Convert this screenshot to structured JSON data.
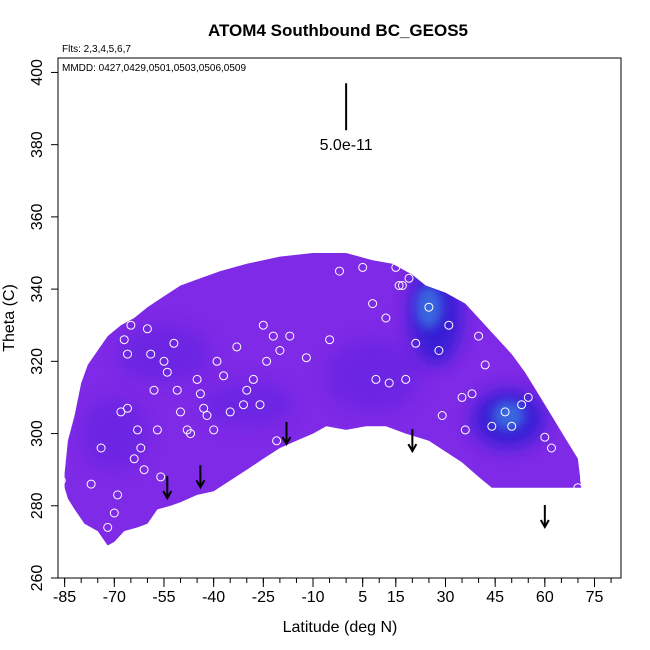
{
  "chart_data": {
    "type": "heatmap",
    "title": "ATOM4 Southbound BC_GEOS5",
    "annotations": {
      "flights": "Flts: 2,3,4,5,6,7",
      "dates": "MMDD: 0427,0429,0501,0503,0506,0509",
      "scale_label": "5.0e-11"
    },
    "xlabel": "Latitude (deg N)",
    "ylabel": "Theta (C)",
    "xlim": [
      -87,
      83
    ],
    "ylim": [
      260,
      404
    ],
    "x_tick_labels": [
      "-85",
      "-70",
      "-55",
      "-40",
      "-25",
      "-10",
      "5",
      "15",
      "30",
      "45",
      "60",
      "75"
    ],
    "x_tick_values": [
      -85,
      -70,
      -55,
      -40,
      -25,
      -10,
      5,
      15,
      30,
      45,
      60,
      75
    ],
    "x_minor_ticks": [
      -85,
      -80,
      -75,
      -70,
      -65,
      -60,
      -55,
      -50,
      -45,
      -40,
      -35,
      -30,
      -25,
      -20,
      -15,
      -10,
      -5,
      0,
      5,
      10,
      15,
      20,
      25,
      30,
      35,
      40,
      45,
      50,
      55,
      60,
      65,
      70,
      75,
      80
    ],
    "y_tick_labels": [
      "260",
      "280",
      "300",
      "320",
      "340",
      "360",
      "380",
      "400"
    ],
    "y_tick_values": [
      260,
      280,
      300,
      320,
      340,
      360,
      380,
      400
    ],
    "colors": {
      "field_base": "#7f2ae6",
      "field_mid": "#5d22e0",
      "field_high": "#2f1bd3",
      "field_peak": "#3a6ee0",
      "points": "#ffffff",
      "arrows": "#000000"
    },
    "upper_boundary": [
      [
        -85,
        289
      ],
      [
        -84,
        298
      ],
      [
        -82,
        305
      ],
      [
        -80,
        314
      ],
      [
        -78,
        319
      ],
      [
        -75,
        323
      ],
      [
        -72,
        327
      ],
      [
        -68,
        330
      ],
      [
        -64,
        332
      ],
      [
        -60,
        335
      ],
      [
        -55,
        338
      ],
      [
        -50,
        341
      ],
      [
        -44,
        343
      ],
      [
        -38,
        345
      ],
      [
        -30,
        347
      ],
      [
        -20,
        349
      ],
      [
        -10,
        350
      ],
      [
        0,
        350
      ],
      [
        8,
        348
      ],
      [
        14,
        347
      ],
      [
        20,
        344
      ],
      [
        24,
        341
      ],
      [
        30,
        339
      ],
      [
        36,
        336
      ],
      [
        40,
        332
      ],
      [
        45,
        327
      ],
      [
        50,
        322
      ],
      [
        54,
        317
      ],
      [
        58,
        311
      ],
      [
        62,
        305
      ],
      [
        66,
        299
      ],
      [
        70,
        293
      ],
      [
        71,
        285
      ]
    ],
    "lower_boundary": [
      [
        71,
        285
      ],
      [
        60,
        285
      ],
      [
        50,
        285
      ],
      [
        44,
        285
      ],
      [
        40,
        288
      ],
      [
        35,
        292
      ],
      [
        30,
        295
      ],
      [
        25,
        298
      ],
      [
        18,
        300
      ],
      [
        12,
        302
      ],
      [
        6,
        302
      ],
      [
        0,
        301
      ],
      [
        -6,
        302
      ],
      [
        -10,
        300
      ],
      [
        -15,
        298
      ],
      [
        -20,
        296
      ],
      [
        -25,
        293
      ],
      [
        -30,
        290
      ],
      [
        -35,
        287
      ],
      [
        -40,
        284
      ],
      [
        -45,
        283
      ],
      [
        -50,
        281
      ],
      [
        -53,
        280
      ],
      [
        -57,
        279
      ],
      [
        -60,
        275
      ],
      [
        -63,
        274
      ],
      [
        -67,
        273
      ],
      [
        -70,
        270
      ],
      [
        -72,
        269
      ],
      [
        -75,
        273
      ],
      [
        -79,
        275
      ],
      [
        -82,
        279
      ],
      [
        -84,
        282
      ],
      [
        -85,
        285
      ],
      [
        -85,
        289
      ]
    ],
    "concentration_blobs": [
      {
        "lat": 27,
        "theta": 333,
        "rx": 8,
        "ry": 14,
        "level": "high"
      },
      {
        "lat": 25,
        "theta": 335,
        "rx": 4,
        "ry": 6,
        "level": "peak"
      },
      {
        "lat": 49,
        "theta": 304,
        "rx": 11,
        "ry": 8,
        "level": "high"
      },
      {
        "lat": 49,
        "theta": 305,
        "rx": 5,
        "ry": 4,
        "level": "peak"
      },
      {
        "lat": -55,
        "theta": 322,
        "rx": 14,
        "ry": 8,
        "level": "mid"
      },
      {
        "lat": -30,
        "theta": 308,
        "rx": 14,
        "ry": 6,
        "level": "mid"
      },
      {
        "lat": 8,
        "theta": 316,
        "rx": 14,
        "ry": 10,
        "level": "mid"
      },
      {
        "lat": -70,
        "theta": 300,
        "rx": 10,
        "ry": 10,
        "level": "mid"
      }
    ],
    "sample_points": [
      [
        -80,
        321
      ],
      [
        -77,
        286
      ],
      [
        -74,
        296
      ],
      [
        -72,
        274
      ],
      [
        -70,
        278
      ],
      [
        -69,
        283
      ],
      [
        -68,
        306
      ],
      [
        -66,
        307
      ],
      [
        -67,
        326
      ],
      [
        -66,
        322
      ],
      [
        -65,
        330
      ],
      [
        -64,
        293
      ],
      [
        -63,
        301
      ],
      [
        -62,
        296
      ],
      [
        -61,
        290
      ],
      [
        -60,
        329
      ],
      [
        -59,
        322
      ],
      [
        -58,
        312
      ],
      [
        -57,
        301
      ],
      [
        -56,
        288
      ],
      [
        -55,
        320
      ],
      [
        -54,
        317
      ],
      [
        -52,
        325
      ],
      [
        -51,
        312
      ],
      [
        -50,
        306
      ],
      [
        -48,
        301
      ],
      [
        -47,
        300
      ],
      [
        -45,
        315
      ],
      [
        -44,
        311
      ],
      [
        -43,
        307
      ],
      [
        -42,
        305
      ],
      [
        -40,
        301
      ],
      [
        -39,
        320
      ],
      [
        -37,
        316
      ],
      [
        -35,
        306
      ],
      [
        -33,
        324
      ],
      [
        -31,
        308
      ],
      [
        -30,
        312
      ],
      [
        -28,
        315
      ],
      [
        -26,
        308
      ],
      [
        -25,
        330
      ],
      [
        -24,
        320
      ],
      [
        -22,
        327
      ],
      [
        -21,
        298
      ],
      [
        -20,
        323
      ],
      [
        -17,
        327
      ],
      [
        -12,
        321
      ],
      [
        -8,
        298
      ],
      [
        -5,
        326
      ],
      [
        -2,
        345
      ],
      [
        5,
        346
      ],
      [
        8,
        336
      ],
      [
        9,
        315
      ],
      [
        12,
        332
      ],
      [
        13,
        314
      ],
      [
        15,
        346
      ],
      [
        16,
        341
      ],
      [
        17,
        341
      ],
      [
        18,
        315
      ],
      [
        19,
        343
      ],
      [
        21,
        325
      ],
      [
        22,
        345
      ],
      [
        24,
        346
      ],
      [
        25,
        335
      ],
      [
        28,
        323
      ],
      [
        29,
        305
      ],
      [
        31,
        330
      ],
      [
        35,
        310
      ],
      [
        36,
        301
      ],
      [
        38,
        311
      ],
      [
        40,
        327
      ],
      [
        42,
        319
      ],
      [
        44,
        302
      ],
      [
        46,
        332
      ],
      [
        48,
        306
      ],
      [
        50,
        302
      ],
      [
        52,
        333
      ],
      [
        53,
        308
      ],
      [
        55,
        310
      ],
      [
        57,
        328
      ],
      [
        60,
        299
      ],
      [
        62,
        296
      ],
      [
        70,
        285
      ],
      [
        72,
        287
      ],
      [
        74,
        287
      ],
      [
        -86,
        287
      ],
      [
        -83,
        307
      ]
    ],
    "arrows": [
      {
        "lat": -54,
        "theta": 286
      },
      {
        "lat": -44,
        "theta": 289
      },
      {
        "lat": -18,
        "theta": 301
      },
      {
        "lat": 20,
        "theta": 299
      },
      {
        "lat": 60,
        "theta": 278
      }
    ],
    "scale_bar": {
      "lat": 0,
      "theta_top": 397,
      "theta_bottom": 384
    }
  }
}
